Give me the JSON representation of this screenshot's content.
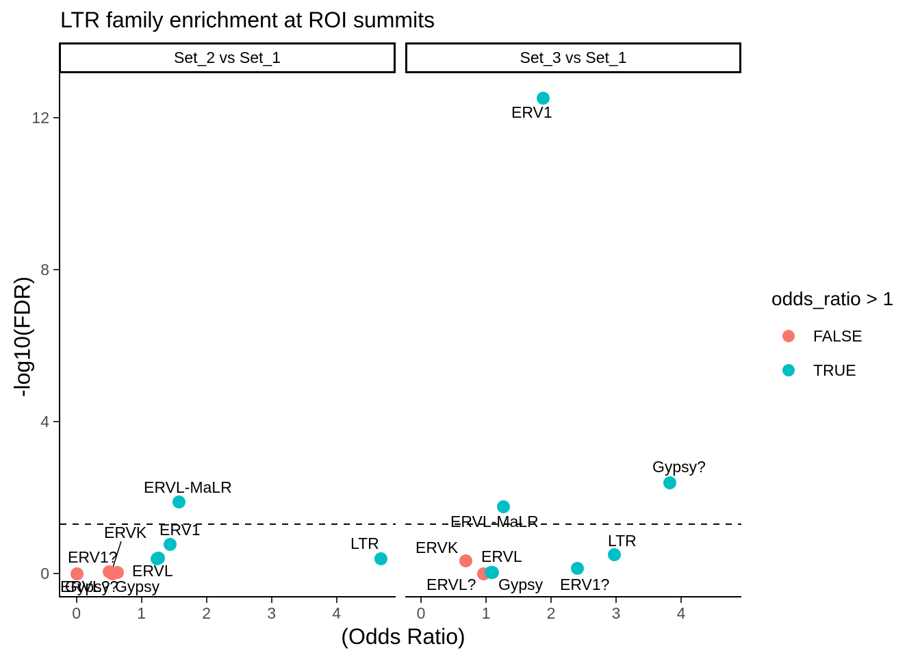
{
  "title": "LTR family enrichment at ROI summits",
  "x_axis": {
    "title": "(Odds Ratio)",
    "tick_labels": [
      "0",
      "1",
      "2",
      "3",
      "4"
    ],
    "tick_values": [
      0,
      1,
      2,
      3,
      4
    ]
  },
  "y_axis": {
    "title": "-log10(FDR)",
    "tick_labels": [
      "0",
      "4",
      "8",
      "12"
    ],
    "tick_values": [
      0,
      4,
      8,
      12
    ]
  },
  "legend": {
    "title": "odds_ratio > 1",
    "items": [
      {
        "label": "FALSE",
        "color": "#F8766D"
      },
      {
        "label": "TRUE",
        "color": "#00BFC4"
      }
    ]
  },
  "chart_data": {
    "type": "scatter",
    "xlabel": "(Odds Ratio)",
    "ylabel": "-log10(FDR)",
    "xlim": [
      -0.25,
      4.92
    ],
    "ylim": [
      -0.6,
      13.2
    ],
    "grid": false,
    "legend_position": "right",
    "threshold_line": {
      "y": 1.3,
      "style": "dashed",
      "color": "#000000"
    },
    "point_colors": {
      "FALSE": "#F8766D",
      "TRUE": "#00BFC4"
    },
    "facets": [
      {
        "label": "Set_2 vs Set_1",
        "points": [
          {
            "name": "ERV1?",
            "odds_ratio": 0.01,
            "neg_log10_fdr": 0.0,
            "odds_ratio_gt_1": false
          },
          {
            "name": "ERVK",
            "odds_ratio": 0.5,
            "neg_log10_fdr": 0.05,
            "odds_ratio_gt_1": false
          },
          {
            "name": "Gypsy?",
            "odds_ratio": 0.56,
            "neg_log10_fdr": 0.0,
            "odds_ratio_gt_1": false
          },
          {
            "name": "ERVL?",
            "odds_ratio": 0.63,
            "neg_log10_fdr": 0.02,
            "odds_ratio_gt_1": false
          },
          {
            "name": "Gypsy",
            "odds_ratio": 1.24,
            "neg_log10_fdr": 0.39,
            "odds_ratio_gt_1": true
          },
          {
            "name": "ERVL",
            "odds_ratio": 1.26,
            "neg_log10_fdr": 0.4,
            "odds_ratio_gt_1": true
          },
          {
            "name": "ERV1",
            "odds_ratio": 1.44,
            "neg_log10_fdr": 0.77,
            "odds_ratio_gt_1": true
          },
          {
            "name": "ERVL-MaLR",
            "odds_ratio": 1.58,
            "neg_log10_fdr": 1.89,
            "odds_ratio_gt_1": true
          },
          {
            "name": "LTR",
            "odds_ratio": 4.68,
            "neg_log10_fdr": 0.38,
            "odds_ratio_gt_1": true
          }
        ]
      },
      {
        "label": "Set_3 vs Set_1",
        "points": [
          {
            "name": "ERVK",
            "odds_ratio": 0.69,
            "neg_log10_fdr": 0.34,
            "odds_ratio_gt_1": false
          },
          {
            "name": "ERVL?",
            "odds_ratio": 0.96,
            "neg_log10_fdr": 0.0,
            "odds_ratio_gt_1": false
          },
          {
            "name": "ERVL",
            "odds_ratio": 1.08,
            "neg_log10_fdr": 0.02,
            "odds_ratio_gt_1": true
          },
          {
            "name": "Gypsy",
            "odds_ratio": 1.1,
            "neg_log10_fdr": 0.03,
            "odds_ratio_gt_1": true
          },
          {
            "name": "ERVL-MaLR",
            "odds_ratio": 1.27,
            "neg_log10_fdr": 1.75,
            "odds_ratio_gt_1": true
          },
          {
            "name": "ERV1",
            "odds_ratio": 1.88,
            "neg_log10_fdr": 12.52,
            "odds_ratio_gt_1": true
          },
          {
            "name": "ERV1?",
            "odds_ratio": 2.41,
            "neg_log10_fdr": 0.14,
            "odds_ratio_gt_1": true
          },
          {
            "name": "LTR",
            "odds_ratio": 2.97,
            "neg_log10_fdr": 0.49,
            "odds_ratio_gt_1": true
          },
          {
            "name": "Gypsy?",
            "odds_ratio": 3.83,
            "neg_log10_fdr": 2.38,
            "odds_ratio_gt_1": true
          }
        ]
      }
    ]
  }
}
